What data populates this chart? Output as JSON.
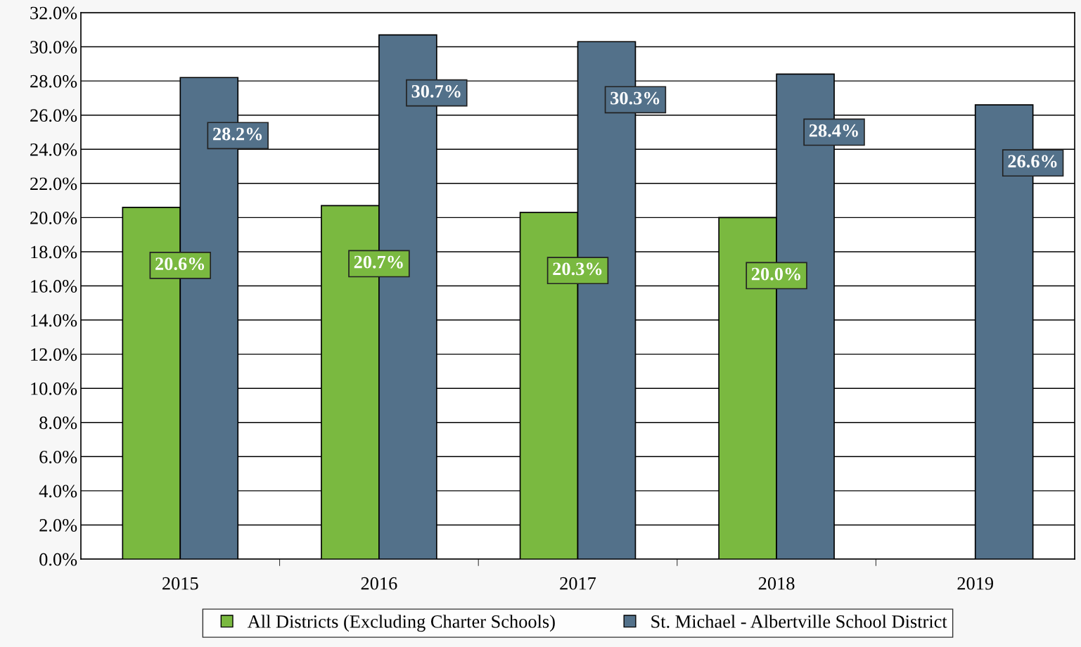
{
  "chart_data": {
    "type": "bar",
    "categories": [
      "2015",
      "2016",
      "2017",
      "2018",
      "2019"
    ],
    "series": [
      {
        "name": "All Districts (Excluding Charter Schools)",
        "color": "#7ab940",
        "values": [
          20.6,
          20.7,
          20.3,
          20.0,
          null
        ],
        "value_labels": [
          "20.6%",
          "20.7%",
          "20.3%",
          "20.0%",
          null
        ]
      },
      {
        "name": "St. Michael - Albertville School District",
        "color": "#53718a",
        "values": [
          28.2,
          30.7,
          30.3,
          28.4,
          26.6
        ],
        "value_labels": [
          "28.2%",
          "30.7%",
          "30.3%",
          "28.4%",
          "26.6%"
        ]
      }
    ],
    "ylim": [
      0,
      32
    ],
    "yticks": [
      {
        "value": 0,
        "label": "0.0%"
      },
      {
        "value": 2,
        "label": "2.0%"
      },
      {
        "value": 4,
        "label": "4.0%"
      },
      {
        "value": 6,
        "label": "6.0%"
      },
      {
        "value": 8,
        "label": "8.0%"
      },
      {
        "value": 10,
        "label": "10.0%"
      },
      {
        "value": 12,
        "label": "12.0%"
      },
      {
        "value": 14,
        "label": "14.0%"
      },
      {
        "value": 16,
        "label": "16.0%"
      },
      {
        "value": 18,
        "label": "18.0%"
      },
      {
        "value": 20,
        "label": "20.0%"
      },
      {
        "value": 22,
        "label": "22.0%"
      },
      {
        "value": 24,
        "label": "24.0%"
      },
      {
        "value": 26,
        "label": "26.0%"
      },
      {
        "value": 28,
        "label": "28.0%"
      },
      {
        "value": 30,
        "label": "30.0%"
      },
      {
        "value": 32,
        "label": "32.0%"
      }
    ],
    "grid": "y",
    "legend": "bottom"
  }
}
